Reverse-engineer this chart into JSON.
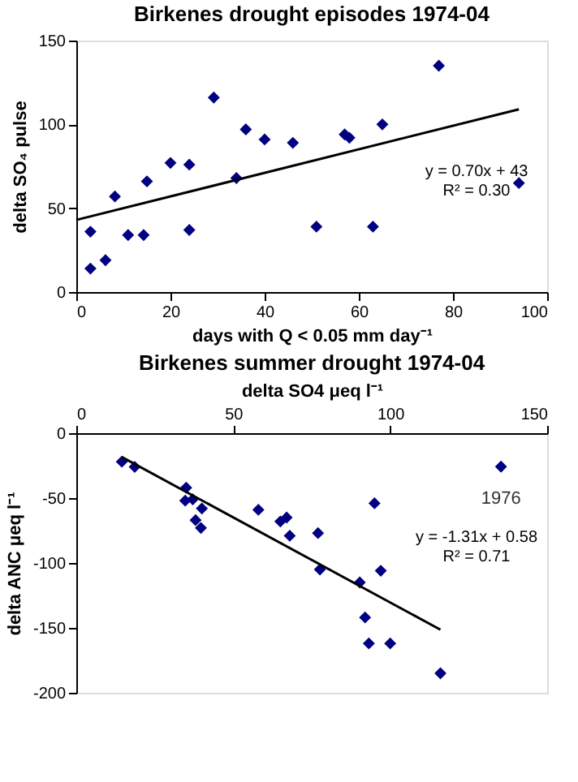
{
  "chart_data": [
    {
      "type": "scatter",
      "title": "Birkenes drought episodes 1974-04",
      "xlabel": "days with Q < 0.05 mm day⁻¹",
      "ylabel": "delta SO₄ pulse",
      "xlim": [
        0,
        100
      ],
      "xticks": [
        0,
        20,
        40,
        60,
        80,
        100
      ],
      "ylim": [
        0,
        150
      ],
      "yticks": [
        0,
        50,
        100,
        150
      ],
      "grid": false,
      "annotations": [
        "y = 0.70x + 43",
        "R² = 0.30"
      ],
      "series": [
        {
          "marker": "diamond",
          "color": "#000080",
          "x": [
            3,
            3,
            6.2,
            8.2,
            11,
            14.3,
            15,
            20,
            24,
            24,
            29.2,
            34,
            36,
            40,
            46,
            51,
            57,
            58,
            63,
            65,
            77,
            94
          ],
          "values": [
            14,
            36,
            19,
            57,
            34,
            34,
            66,
            77,
            76,
            37,
            116,
            68,
            97,
            91,
            89,
            39,
            94,
            92,
            39,
            100,
            135,
            65
          ]
        },
        {
          "type": "line",
          "color": "#000000",
          "x": [
            0,
            94
          ],
          "values": [
            43,
            109
          ]
        }
      ]
    },
    {
      "type": "scatter",
      "title": "Birkenes summer drought 1974-04",
      "xlabel": "delta SO4 μeq l⁻¹",
      "ylabel": "delta ANC μeq l⁻¹",
      "xlim": [
        0,
        150
      ],
      "xticks": [
        0,
        50,
        100,
        150
      ],
      "ylim": [
        -200,
        0
      ],
      "yticks": [
        -200,
        -150,
        -100,
        -50,
        0
      ],
      "grid": false,
      "annotations": [
        "y = -1.31x + 0.58",
        "R² = 0.71",
        {
          "text": "1976",
          "x": 135.3,
          "y": -25.8
        }
      ],
      "series": [
        {
          "marker": "diamond",
          "color": "#000080",
          "x": [
            14.5,
            18.6,
            35,
            34.7,
            37.1,
            38,
            40,
            39.7,
            58,
            65,
            67,
            68,
            77,
            77.6,
            90.3,
            95,
            97,
            92,
            93.2,
            100,
            116
          ],
          "values": [
            -22,
            -26,
            -42,
            -52,
            -51,
            -67,
            -58,
            -73,
            -59,
            -68,
            -65,
            -79,
            -77,
            -105,
            -115,
            -54,
            -106,
            -142,
            -162,
            -162,
            -185
          ]
        },
        {
          "marker": "diamond",
          "color": "#000080",
          "x": [
            135.3
          ],
          "values": [
            -25.8
          ]
        },
        {
          "type": "line",
          "color": "#000000",
          "x": [
            14.5,
            116
          ],
          "values": [
            -18.4,
            -151.4
          ]
        }
      ]
    }
  ]
}
